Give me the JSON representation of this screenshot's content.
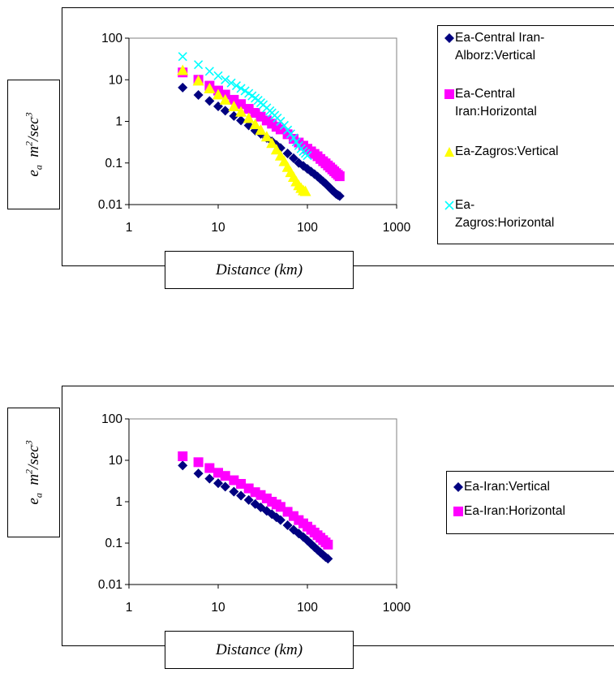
{
  "chart_data": [
    {
      "type": "scatter",
      "xlabel": "Distance (km)",
      "ylabel": {
        "e": "e",
        "sub": "a",
        "m": "m",
        "sup1": "2",
        "rest": "/sec",
        "sup2": "3"
      },
      "xscale": "log",
      "yscale": "log",
      "xlim": [
        1,
        1000
      ],
      "ylim": [
        0.01,
        100
      ],
      "x_ticks": [
        "1",
        "10",
        "100",
        "1000"
      ],
      "y_ticks": [
        "0.01",
        "0.1",
        "1",
        "10",
        "100"
      ],
      "grid": false,
      "legend_position": "right",
      "series": [
        {
          "name": "Ea-Central Iran-\nAlborz:Vertical",
          "marker": "diamond",
          "color": "#000080",
          "x": [
            4,
            6,
            8,
            10,
            12,
            15,
            18,
            22,
            26,
            30,
            35,
            40,
            45,
            50,
            60,
            70,
            80,
            90,
            100,
            110,
            120,
            130,
            140,
            150,
            160,
            170,
            180,
            190,
            200,
            210,
            220,
            230
          ],
          "y": [
            6.5,
            4.3,
            3.1,
            2.3,
            1.8,
            1.35,
            1.05,
            0.8,
            0.6,
            0.5,
            0.4,
            0.33,
            0.27,
            0.23,
            0.17,
            0.13,
            0.1,
            0.085,
            0.072,
            0.062,
            0.054,
            0.047,
            0.041,
            0.036,
            0.032,
            0.028,
            0.025,
            0.022,
            0.02,
            0.018,
            0.017,
            0.016
          ]
        },
        {
          "name": "Ea-Central\nIran:Horizontal",
          "marker": "square",
          "color": "#FF00FF",
          "x": [
            4,
            6,
            8,
            10,
            12,
            15,
            18,
            22,
            26,
            30,
            35,
            40,
            45,
            50,
            60,
            70,
            80,
            90,
            100,
            110,
            120,
            130,
            140,
            150,
            160,
            170,
            180,
            190,
            200,
            210,
            220,
            230
          ],
          "y": [
            15,
            10,
            7.2,
            5.5,
            4.4,
            3.3,
            2.6,
            2.0,
            1.6,
            1.3,
            1.05,
            0.88,
            0.74,
            0.64,
            0.49,
            0.38,
            0.31,
            0.26,
            0.22,
            0.19,
            0.165,
            0.145,
            0.125,
            0.11,
            0.098,
            0.087,
            0.078,
            0.07,
            0.063,
            0.057,
            0.052,
            0.048
          ]
        },
        {
          "name": "Ea-Zagros:Vertical",
          "marker": "triangle",
          "color": "#FFFF00",
          "x": [
            4,
            6,
            8,
            10,
            12,
            15,
            18,
            22,
            26,
            30,
            35,
            40,
            45,
            50,
            55,
            60,
            65,
            70,
            75,
            80,
            85,
            90,
            95
          ],
          "y": [
            17,
            9.5,
            6.2,
            4.4,
            3.3,
            2.3,
            1.7,
            1.2,
            0.85,
            0.62,
            0.43,
            0.3,
            0.21,
            0.15,
            0.11,
            0.08,
            0.06,
            0.046,
            0.036,
            0.029,
            0.025,
            0.022,
            0.021
          ]
        },
        {
          "name": "Ea-\nZagros:Horizontal",
          "marker": "x",
          "color": "#00FFFF",
          "x": [
            4,
            6,
            8,
            10,
            12,
            14,
            16,
            18,
            20,
            22,
            24,
            26,
            28,
            30,
            32,
            35,
            38,
            40,
            43,
            46,
            50,
            55,
            60,
            65,
            70,
            75,
            80,
            85,
            90,
            95,
            100
          ],
          "y": [
            36,
            23,
            16,
            12.5,
            10,
            8.4,
            7.2,
            6.2,
            5.4,
            4.7,
            4.1,
            3.6,
            3.2,
            2.8,
            2.5,
            2.1,
            1.8,
            1.6,
            1.4,
            1.2,
            1.0,
            0.8,
            0.62,
            0.5,
            0.4,
            0.32,
            0.26,
            0.22,
            0.19,
            0.17,
            0.15
          ]
        }
      ]
    },
    {
      "type": "scatter",
      "xlabel": "Distance (km)",
      "ylabel": {
        "e": "e",
        "sub": "a",
        "m": "m",
        "sup1": "2",
        "rest": "/sec",
        "sup2": "3"
      },
      "xscale": "log",
      "yscale": "log",
      "xlim": [
        1,
        1000
      ],
      "ylim": [
        0.01,
        100
      ],
      "x_ticks": [
        "1",
        "10",
        "100",
        "1000"
      ],
      "y_ticks": [
        "0.01",
        "0.1",
        "1",
        "10",
        "100"
      ],
      "grid": false,
      "legend_position": "right",
      "series": [
        {
          "name": "Ea-Iran:Vertical",
          "marker": "diamond",
          "color": "#000080",
          "x": [
            4,
            6,
            8,
            10,
            12,
            15,
            18,
            22,
            26,
            30,
            35,
            40,
            45,
            50,
            60,
            70,
            80,
            90,
            100,
            110,
            120,
            130,
            140,
            150,
            160,
            170
          ],
          "y": [
            7.5,
            4.8,
            3.6,
            2.8,
            2.3,
            1.75,
            1.4,
            1.1,
            0.88,
            0.73,
            0.6,
            0.5,
            0.42,
            0.36,
            0.27,
            0.21,
            0.17,
            0.14,
            0.115,
            0.095,
            0.08,
            0.068,
            0.059,
            0.052,
            0.046,
            0.042
          ]
        },
        {
          "name": "Ea-Iran:Horizontal",
          "marker": "square",
          "color": "#FF00FF",
          "x": [
            4,
            6,
            8,
            10,
            12,
            15,
            18,
            22,
            26,
            30,
            35,
            40,
            45,
            50,
            60,
            70,
            80,
            90,
            100,
            110,
            120,
            130,
            140,
            150,
            160,
            170
          ],
          "y": [
            12.5,
            9.0,
            6.5,
            5.0,
            4.2,
            3.3,
            2.7,
            2.1,
            1.7,
            1.45,
            1.2,
            1.0,
            0.86,
            0.75,
            0.57,
            0.45,
            0.36,
            0.3,
            0.25,
            0.21,
            0.18,
            0.155,
            0.135,
            0.118,
            0.104,
            0.092
          ]
        }
      ]
    }
  ]
}
